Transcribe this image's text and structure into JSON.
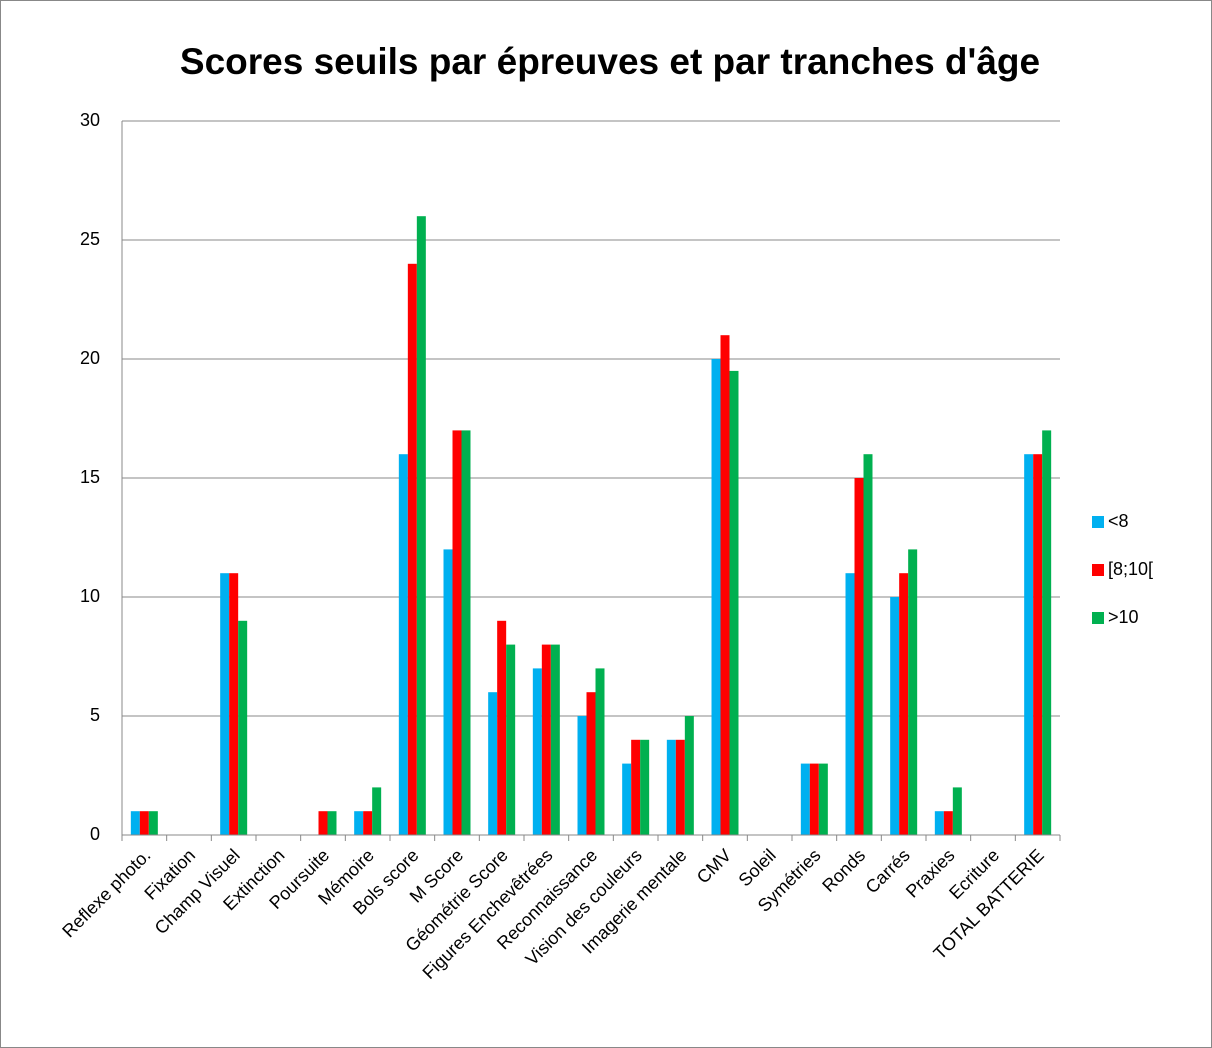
{
  "chart_data": {
    "type": "bar",
    "title": "Scores seuils par épreuves et par tranches d'âge",
    "categories": [
      "Reflexe photo.",
      "Fixation",
      "Champ Visuel",
      "Extinction",
      "Poursuite",
      "Mémoire",
      "Bols score",
      "M Score",
      "Géométrie Score",
      "Figures Enchevêtrées",
      "Reconnaissance",
      "Vision des couleurs",
      "Imagerie mentale",
      "CMV",
      "Soleil",
      "Symétries",
      "Ronds",
      "Carrés",
      "Praxies",
      "Ecriture",
      "TOTAL BATTERIE"
    ],
    "series": [
      {
        "name": "<8",
        "color": "#00b0f0",
        "values": [
          1,
          0,
          11,
          0,
          0,
          1,
          16,
          12,
          6,
          7,
          5,
          3,
          4,
          20,
          0,
          3,
          11,
          10,
          1,
          0,
          16
        ]
      },
      {
        "name": "[8;10[",
        "color": "#ff0000",
        "values": [
          1,
          0,
          11,
          0,
          1,
          1,
          24,
          17,
          9,
          8,
          6,
          4,
          4,
          21,
          0,
          3,
          15,
          11,
          1,
          0,
          16
        ]
      },
      {
        "name": ">10",
        "color": "#00b050",
        "values": [
          1,
          0,
          9,
          0,
          1,
          2,
          26,
          17,
          8,
          8,
          7,
          4,
          5,
          19.5,
          0,
          3,
          16,
          12,
          2,
          0,
          17
        ]
      }
    ],
    "ylim": [
      0,
      30
    ],
    "yticks": [
      0,
      5,
      10,
      15,
      20,
      25,
      30
    ],
    "grid": true,
    "legend": "right"
  }
}
